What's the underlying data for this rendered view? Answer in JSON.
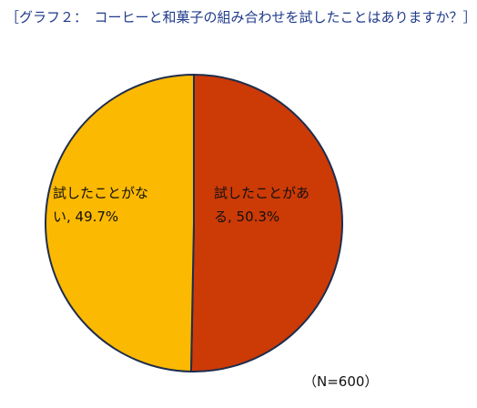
{
  "title": "［グラフ２：　コーヒーと和菓子の組み合わせを試したことはありますか？］",
  "note": "（N=600）",
  "colors": {
    "title": "#1f3a8a",
    "outline": "#1f2d4d"
  },
  "chart_data": {
    "type": "pie",
    "title": "［グラフ２：　コーヒーと和菓子の組み合わせを試したことはありますか？］",
    "start_angle_deg": 0,
    "direction": "clockwise",
    "slices": [
      {
        "label_lines": [
          "試したことがあ",
          "る, 50.3%"
        ],
        "category": "試したことがある",
        "value": 50.3,
        "color": "#cc3a06"
      },
      {
        "label_lines": [
          "試したことがな",
          "い, 49.7%"
        ],
        "category": "試したことがない",
        "value": 49.7,
        "color": "#fbb902"
      }
    ],
    "legend": "none",
    "n": 600
  }
}
